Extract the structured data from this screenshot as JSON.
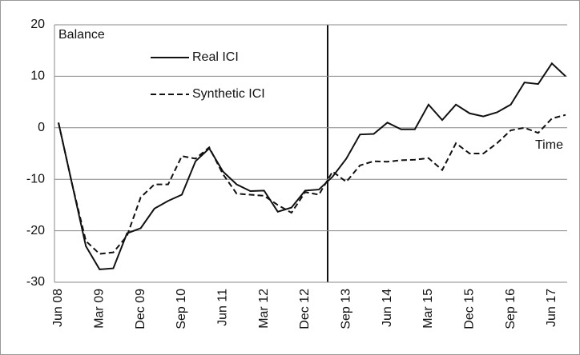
{
  "chart_data": {
    "type": "line",
    "y_label": "Balance",
    "x_label": "Time",
    "categories": [
      "Jun 08",
      null,
      null,
      "Mar 09",
      null,
      null,
      "Dec 09",
      null,
      null,
      "Sep 10",
      null,
      null,
      "Jun 11",
      null,
      null,
      "Mar 12",
      null,
      null,
      "Dec 12",
      null,
      null,
      "Sep 13",
      null,
      null,
      "Jun 14",
      null,
      null,
      "Mar 15",
      null,
      null,
      "Dec 15",
      null,
      null,
      "Sep 16",
      null,
      null,
      "Jun 17",
      null
    ],
    "series": [
      {
        "name": "Real ICI",
        "color": "#111111",
        "dash": "solid",
        "values": [
          1,
          -11,
          -23,
          -27.5,
          -27.3,
          -20.5,
          -19.5,
          -15.7,
          -14.2,
          -13,
          -6.5,
          -4,
          -8.5,
          -11,
          -12.3,
          -12.2,
          -16.3,
          -15.5,
          -12.2,
          -12,
          -9.5,
          -6,
          -1.3,
          -1.2,
          1,
          -0.3,
          -0.3,
          4.5,
          1.5,
          4.5,
          2.8,
          2.2,
          3,
          4.5,
          8.8,
          8.5,
          12.5,
          10
        ]
      },
      {
        "name": "Synthetic ICI",
        "color": "#111111",
        "dash": "dashed",
        "values": [
          1,
          -11,
          -22,
          -24.5,
          -24.2,
          -21,
          -13.5,
          -11,
          -11,
          -5.5,
          -6,
          -3.8,
          -9,
          -12.8,
          -13,
          -13.2,
          -15,
          -16.5,
          -12.5,
          -13,
          -8.5,
          -10.5,
          -7.3,
          -6.5,
          -6.6,
          -6.3,
          -6.2,
          -5.9,
          -8.2,
          -3,
          -5,
          -5,
          -3,
          -0.5,
          0,
          -1,
          1.8,
          2.5
        ]
      }
    ],
    "ylim": [
      -30,
      20
    ],
    "yticks": [
      -30,
      -20,
      -10,
      0,
      10,
      20
    ],
    "grid": true
  }
}
